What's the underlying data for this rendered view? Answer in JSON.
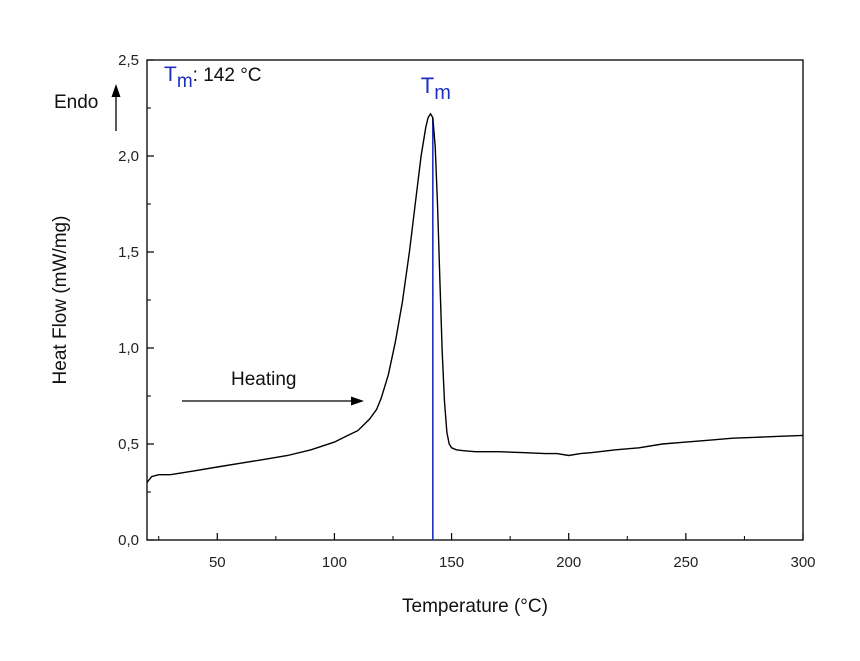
{
  "chart_data": {
    "type": "line",
    "xlabel": "Temperature (°C)",
    "ylabel": "Heat Flow (mW/mg)",
    "xlim": [
      20,
      300
    ],
    "ylim": [
      0.0,
      2.5
    ],
    "x_ticks": [
      50,
      100,
      150,
      200,
      250,
      300
    ],
    "x_tick_labels": [
      "50",
      "100",
      "150",
      "200",
      "250",
      "300"
    ],
    "y_ticks": [
      0.0,
      0.5,
      1.0,
      1.5,
      2.0,
      2.5
    ],
    "y_tick_labels": [
      "0,0",
      "0,5",
      "1,0",
      "1,5",
      "2,0",
      "2,5"
    ],
    "grid": false,
    "series": [
      {
        "color": "#000000",
        "x": [
          20,
          22,
          25,
          30,
          40,
          50,
          60,
          70,
          80,
          90,
          100,
          105,
          110,
          115,
          118,
          120,
          123,
          126,
          129,
          132,
          135,
          137,
          139,
          140,
          141,
          142,
          143,
          144,
          145,
          146,
          147,
          148,
          149,
          150,
          152,
          155,
          160,
          170,
          180,
          190,
          195,
          200,
          205,
          210,
          220,
          230,
          240,
          250,
          260,
          270,
          280,
          290,
          300
        ],
        "y": [
          0.3,
          0.33,
          0.34,
          0.34,
          0.36,
          0.38,
          0.4,
          0.42,
          0.44,
          0.47,
          0.51,
          0.54,
          0.57,
          0.63,
          0.68,
          0.74,
          0.86,
          1.03,
          1.24,
          1.5,
          1.8,
          2.0,
          2.15,
          2.2,
          2.22,
          2.2,
          2.05,
          1.75,
          1.35,
          0.98,
          0.72,
          0.56,
          0.5,
          0.48,
          0.47,
          0.465,
          0.46,
          0.46,
          0.455,
          0.45,
          0.45,
          0.44,
          0.45,
          0.455,
          0.47,
          0.48,
          0.5,
          0.51,
          0.52,
          0.53,
          0.535,
          0.54,
          0.545
        ]
      }
    ],
    "vline": {
      "x": 142,
      "color": "#1f2fc2",
      "label_main": "T",
      "label_sub": "m"
    },
    "annotations": {
      "tm_label_main": "T",
      "tm_label_sub": "m",
      "tm_value_text": ": 142 °C",
      "endo_text": "Endo",
      "heating_text": "Heating"
    }
  }
}
